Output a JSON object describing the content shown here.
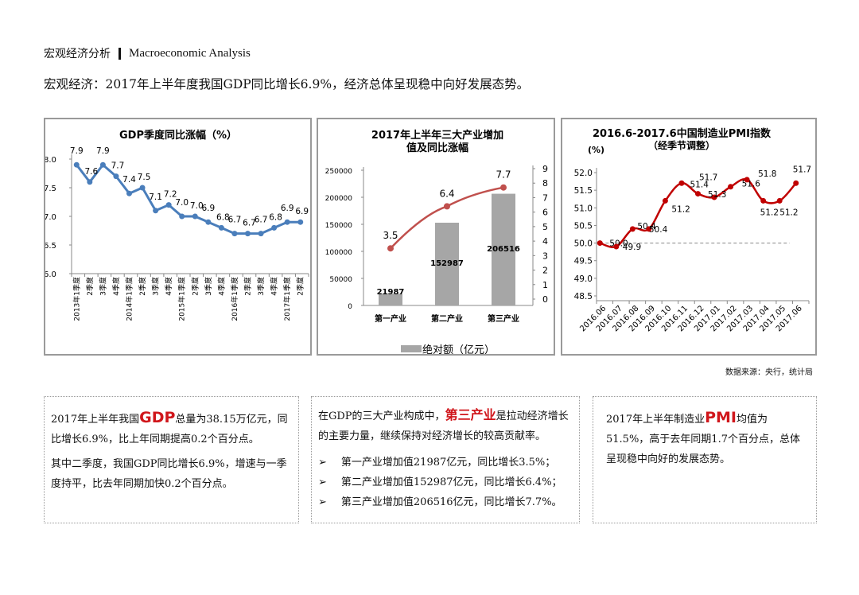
{
  "header": {
    "title_cn": "宏观经济分析",
    "title_en": "Macroeconomic Analysis"
  },
  "subtitle": "宏观经济：2017年上半年度我国GDP同比增长6.9%，经济总体呈现稳中向好发展态势。",
  "source": "数据来源：央行，统计局",
  "chart_data": [
    {
      "type": "line",
      "title": "GDP季度同比涨幅（%）",
      "categories": [
        "2013年1季度",
        "2季度",
        "3季度",
        "4季度",
        "2014年1季度",
        "2季度",
        "3季度",
        "4季度",
        "2015年1季度",
        "2季度",
        "3季度",
        "4季度",
        "2016年1季度",
        "2季度",
        "3季度",
        "4季度",
        "2017年1季度",
        "2季度"
      ],
      "values": [
        7.9,
        7.6,
        7.9,
        7.7,
        7.4,
        7.5,
        7.1,
        7.2,
        7.0,
        7.0,
        6.9,
        6.8,
        6.7,
        6.7,
        6.7,
        6.8,
        6.9,
        6.9
      ],
      "labels": [
        "7.9",
        "7.6",
        "7.9",
        "7.7",
        "7.4",
        "7.5",
        "7.1",
        "7.2",
        "7.0",
        "7.0",
        "6.9",
        "6.8",
        "6.7",
        "6.7",
        "6.7",
        "6.8",
        "6.9",
        "6.9"
      ],
      "ylim": [
        6.0,
        8.0
      ],
      "yticks": [
        "6.0",
        "6.5",
        "7.0",
        "7.5",
        "8.0"
      ],
      "color": "#4a7ebb",
      "grid": false
    },
    {
      "type": "bar+line",
      "title": [
        "2017年上半年三大产业增加",
        "值及同比涨幅"
      ],
      "categories": [
        "第一产业",
        "第二产业",
        "第三产业"
      ],
      "bar_series": {
        "name": "绝对额（亿元）",
        "values": [
          21987,
          152987,
          206516
        ],
        "labels": [
          "21987",
          "152987",
          "206516"
        ],
        "color": "#a6a6a6"
      },
      "line_series": {
        "values": [
          3.5,
          6.4,
          7.7
        ],
        "labels": [
          "3.5",
          "6.4",
          "7.7"
        ],
        "color": "#c0504d"
      },
      "ylim_left": [
        0,
        250000
      ],
      "yticks_left": [
        "0",
        "50000",
        "100000",
        "150000",
        "200000",
        "250000"
      ],
      "ylim_right": [
        0,
        9
      ],
      "yticks_right": [
        "0",
        "1",
        "2",
        "3",
        "4",
        "5",
        "6",
        "7",
        "8",
        "9"
      ],
      "legend": "bottom"
    },
    {
      "type": "line",
      "title": [
        "2016.6-2017.6中国制造业PMI指数",
        "（经季节调整）"
      ],
      "ylabel": "(%)",
      "categories": [
        "2016.06",
        "2016.07",
        "2016.08",
        "2016.09",
        "2016.10",
        "2016.11",
        "2016.12",
        "2017.01",
        "2017.02",
        "2017.03",
        "2017.04",
        "2017.05",
        "2017.06"
      ],
      "values": [
        50.0,
        49.9,
        50.4,
        50.4,
        51.2,
        51.7,
        51.4,
        51.3,
        51.6,
        51.8,
        51.2,
        51.2,
        51.7
      ],
      "labels": [
        "50.0",
        "49.9",
        "50.4",
        "50.4",
        "51.2",
        "51.7",
        "51.4",
        "51.3",
        "51.6",
        "51.8",
        "51.2",
        "51.2",
        "51.7"
      ],
      "ylim": [
        48.5,
        52.0
      ],
      "yticks": [
        "48.5",
        "49.0",
        "49.5",
        "50.0",
        "50.5",
        "51.0",
        "51.5",
        "52.0"
      ],
      "reference_line": 50.0,
      "color": "#c00000",
      "smooth": true
    }
  ],
  "panels": {
    "gdp": {
      "p1_a": "2017年上半年我国",
      "p1_em": "GDP",
      "p1_b": "总量为38.15万亿元，同比增长6.9%，比上年同期提高0.2个百分点。",
      "p2": "其中二季度，我国GDP同比增长6.9%，增速与一季度持平，比去年同期加快0.2个百分点。"
    },
    "industry": {
      "p1_a": "在GDP的三大产业构成中，",
      "p1_em": "第三产业",
      "p1_b": "是拉动经济增长的主要力量，继续保持对经济增长的较高贡献率。",
      "bullets": [
        "第一产业增加值21987亿元，同比增长3.5%；",
        "第二产业增加值152987亿元，同比增长6.4%；",
        "第三产业增加值206516亿元，同比增长7.7%。"
      ],
      "bullet_glyph": "➢"
    },
    "pmi": {
      "p1_a": "2017年上半年制造业",
      "p1_em": "PMI",
      "p1_b": "均值为51.5%，高于去年同期1.7个百分点，总体呈现稳中向好的发展态势。"
    }
  }
}
